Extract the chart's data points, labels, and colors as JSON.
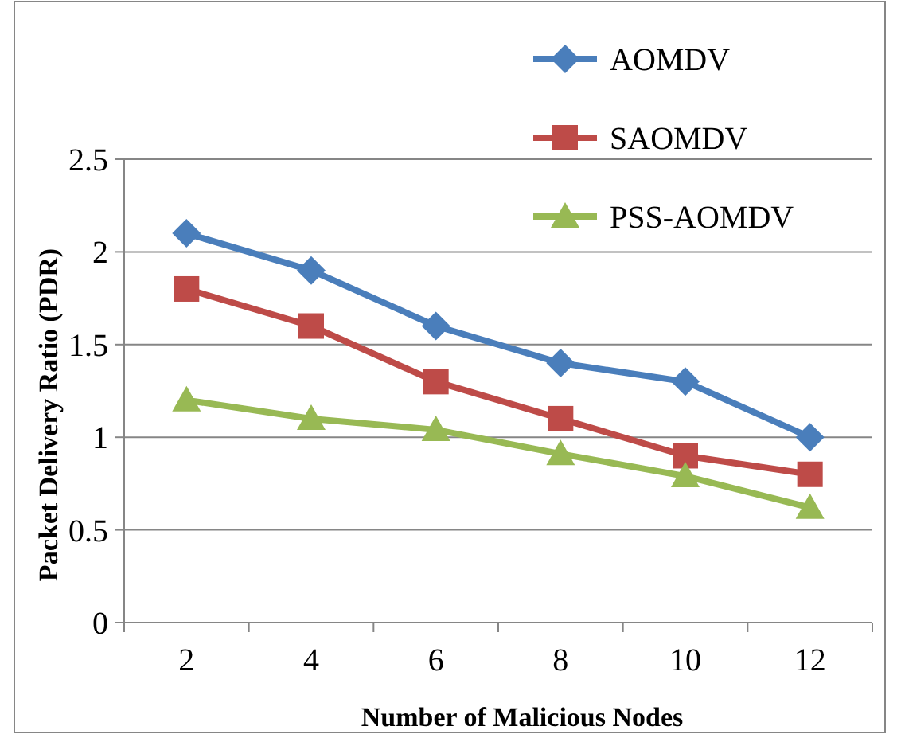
{
  "chart_data": {
    "type": "line",
    "xlabel": "Number of Malicious Nodes",
    "ylabel": "Packet Delivery Ratio (PDR)",
    "categories": [
      "2",
      "4",
      "6",
      "8",
      "10",
      "12"
    ],
    "series": [
      {
        "name": "AOMDV",
        "color": "#4a7ebb",
        "marker": "diamond",
        "values": [
          2.1,
          1.9,
          1.6,
          1.4,
          1.3,
          1.0
        ]
      },
      {
        "name": "SAOMDV",
        "color": "#be4b48",
        "marker": "square",
        "values": [
          1.8,
          1.6,
          1.3,
          1.1,
          0.9,
          0.8
        ]
      },
      {
        "name": "PSS-AOMDV",
        "color": "#98b954",
        "marker": "triangle",
        "values": [
          1.2,
          1.1,
          1.04,
          0.91,
          0.79,
          0.62
        ]
      }
    ],
    "ylim": [
      0,
      2.5
    ],
    "yticks": [
      0,
      0.5,
      1,
      1.5,
      2,
      2.5
    ],
    "grid": "y",
    "legend": "top right"
  }
}
